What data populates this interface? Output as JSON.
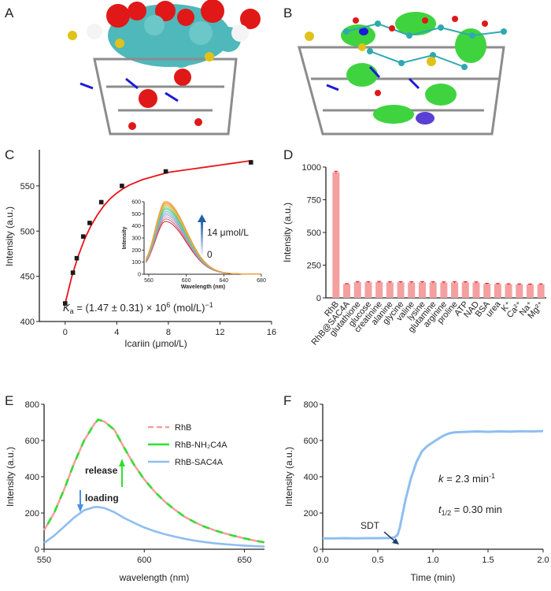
{
  "panels": {
    "A": {
      "letter": "A"
    },
    "B": {
      "letter": "B"
    },
    "C": {
      "letter": "C"
    },
    "D": {
      "letter": "D"
    },
    "E": {
      "letter": "E"
    },
    "F": {
      "letter": "F"
    }
  },
  "chart_data": [
    {
      "id": "C",
      "type": "scatter",
      "xlabel": "Icariin (μmol/L)",
      "ylabel": "Intensity (a.u.)",
      "xlim": [
        -2,
        16
      ],
      "ylim": [
        400,
        590
      ],
      "xticks": [
        0,
        4,
        8,
        12,
        16
      ],
      "yticks": [
        400,
        450,
        500,
        550
      ],
      "xtick_labels": [
        "0",
        "4",
        "8",
        "12",
        "16"
      ],
      "ytick_labels": [
        "400",
        "450",
        "500",
        "550"
      ],
      "x": [
        0,
        0.6,
        0.9,
        1.4,
        1.9,
        2.8,
        4.4,
        7.8,
        14.4
      ],
      "y": [
        420,
        454,
        470,
        494,
        509,
        532,
        550,
        566,
        576
      ],
      "fit": {
        "name": "binding fit",
        "color": "#e8141a",
        "x": [
          0.0,
          0.5,
          1.0,
          1.5,
          2.0,
          2.5,
          3.0,
          3.5,
          4.0,
          4.5,
          5.0,
          5.5,
          6.0,
          6.5,
          7.0,
          7.5,
          8.0,
          9.0,
          10.0,
          11.0,
          12.0,
          13.0,
          14.0,
          14.5
        ],
        "y": [
          420,
          449,
          472,
          491,
          506,
          518,
          528,
          536,
          542,
          547,
          551,
          554,
          557,
          559,
          561,
          563,
          565,
          567,
          569,
          571,
          573,
          575,
          577,
          578
        ]
      },
      "annotation_prefix": "K",
      "annotation_sub": "a",
      "annotation_main": " = (1.47 ± 0.31) × 10",
      "annotation_sup": "6",
      "annotation_unit": " (mol/L)",
      "annotation_unit_sup": "−1",
      "inset": {
        "type": "line",
        "xlabel": "Wavelength (nm)",
        "ylabel": "Intensity",
        "xlim": [
          555,
          680
        ],
        "ylim": [
          0,
          600
        ],
        "xticks": [
          560,
          600,
          640,
          680
        ],
        "yticks": [
          0,
          100,
          200,
          300,
          400,
          500,
          600
        ],
        "xtick_labels": [
          "560",
          "600",
          "640",
          "680"
        ],
        "ytick_labels": [
          "0",
          "100",
          "200",
          "300",
          "400",
          "500",
          "600"
        ],
        "peak_x": 578,
        "series_peaks": [
          420,
          440,
          458,
          475,
          490,
          505,
          520,
          532,
          545,
          556,
          566,
          575,
          585
        ],
        "series_colors": [
          "#d62728",
          "#c4607a",
          "#b39ddb",
          "#9e9e9e",
          "#7fb3d5",
          "#64c4c8",
          "#4fc39c",
          "#80c06e",
          "#b5c55e",
          "#d4c44a",
          "#e8b048",
          "#f0a050",
          "#f39a2f"
        ],
        "arrow_top_label": "14 μmol/L",
        "arrow_bottom_label": "0"
      }
    },
    {
      "id": "D",
      "type": "bar",
      "ylabel": "Intensity (a.u.)",
      "ylim": [
        0,
        1000
      ],
      "yticks": [
        0,
        250,
        500,
        750,
        1000
      ],
      "ytick_labels": [
        "0",
        "250",
        "500",
        "750",
        "1000"
      ],
      "categories": [
        "RhB",
        "RhB@SAC4A",
        "glutathione",
        "glucose",
        "creatinine",
        "alanine",
        "glycine",
        "valine",
        "lysine",
        "glutamine",
        "arginine",
        "proline",
        "ATP",
        "NAD",
        "BSA",
        "urea",
        "K⁺",
        "Ca²⁺",
        "Na⁺",
        "Mg²⁺"
      ],
      "values": [
        960,
        106,
        120,
        119,
        121,
        118,
        119,
        118,
        119,
        118,
        117,
        118,
        119,
        117,
        107,
        106,
        104,
        103,
        102,
        103
      ],
      "errors": [
        8,
        3,
        5,
        5,
        5,
        5,
        5,
        5,
        5,
        5,
        5,
        5,
        5,
        5,
        4,
        4,
        4,
        4,
        4,
        4
      ],
      "bar_color": "#f4a0a0",
      "error_color": "#e8141a"
    },
    {
      "id": "E",
      "type": "line",
      "xlabel": "wavelength (nm)",
      "ylabel": "Intensity (a.u.)",
      "xlim": [
        550,
        660
      ],
      "ylim": [
        0,
        800
      ],
      "xticks": [
        550,
        600,
        650
      ],
      "yticks": [
        0,
        200,
        400,
        600,
        800
      ],
      "xtick_labels": [
        "550",
        "600",
        "650"
      ],
      "ytick_labels": [
        "0",
        "200",
        "400",
        "600",
        "800"
      ],
      "x": [
        550,
        555,
        560,
        565,
        570,
        575,
        577,
        580,
        585,
        590,
        595,
        600,
        605,
        610,
        615,
        620,
        625,
        630,
        635,
        640,
        645,
        650,
        655,
        660
      ],
      "series": [
        {
          "name": "RhB",
          "color": "#f4a0a0",
          "dash": "dashed",
          "values": [
            105,
            200,
            330,
            475,
            600,
            690,
            715,
            705,
            660,
            560,
            465,
            385,
            320,
            265,
            220,
            180,
            150,
            125,
            105,
            88,
            73,
            60,
            48,
            38
          ]
        },
        {
          "name": "RhB-NH₂C4A",
          "color": "#2fe02f",
          "dash": "dashed",
          "values": [
            105,
            200,
            330,
            475,
            600,
            690,
            715,
            705,
            660,
            560,
            465,
            385,
            320,
            265,
            220,
            180,
            150,
            125,
            105,
            88,
            73,
            60,
            48,
            38
          ]
        },
        {
          "name": "RhB-SAC4A",
          "color": "#8fbef0",
          "dash": "solid",
          "values": [
            35,
            75,
            125,
            175,
            215,
            232,
            233,
            228,
            205,
            172,
            145,
            120,
            100,
            84,
            70,
            58,
            48,
            40,
            33,
            28,
            24,
            20,
            17,
            15
          ]
        }
      ],
      "annotations": [
        {
          "text": "release",
          "color": "#2fe02f"
        },
        {
          "text": "loading",
          "color": "#4a90e2"
        }
      ]
    },
    {
      "id": "F",
      "type": "line",
      "xlabel": "Time (min)",
      "ylabel": "Intensity (a.u.)",
      "xlim": [
        0,
        2.0
      ],
      "ylim": [
        0,
        800
      ],
      "xticks": [
        0.0,
        0.5,
        1.0,
        1.5,
        2.0
      ],
      "yticks": [
        0,
        200,
        400,
        600,
        800
      ],
      "xtick_labels": [
        "0.0",
        "0.5",
        "1.0",
        "1.5",
        "2.0"
      ],
      "ytick_labels": [
        "0",
        "200",
        "400",
        "600",
        "800"
      ],
      "series": [
        {
          "name": "Intensity",
          "color": "#8fbef0",
          "x": [
            0.0,
            0.1,
            0.2,
            0.3,
            0.4,
            0.5,
            0.6,
            0.65,
            0.68,
            0.7,
            0.72,
            0.75,
            0.8,
            0.85,
            0.9,
            0.95,
            1.0,
            1.05,
            1.1,
            1.15,
            1.2,
            1.3,
            1.4,
            1.5,
            1.6,
            1.7,
            1.8,
            1.9,
            2.0
          ],
          "values": [
            60,
            60,
            61,
            60,
            61,
            61,
            62,
            65,
            80,
            120,
            180,
            270,
            390,
            480,
            540,
            570,
            590,
            610,
            628,
            640,
            645,
            648,
            650,
            648,
            650,
            649,
            651,
            650,
            652
          ]
        }
      ],
      "annotation_sdt": "SDT",
      "annotation_k_var": "k",
      "annotation_k_val": " = 2.3 min",
      "annotation_k_sup": "-1",
      "annotation_t_var": "t",
      "annotation_t_sub": "1/2",
      "annotation_t_val": " = 0.30 min"
    }
  ]
}
